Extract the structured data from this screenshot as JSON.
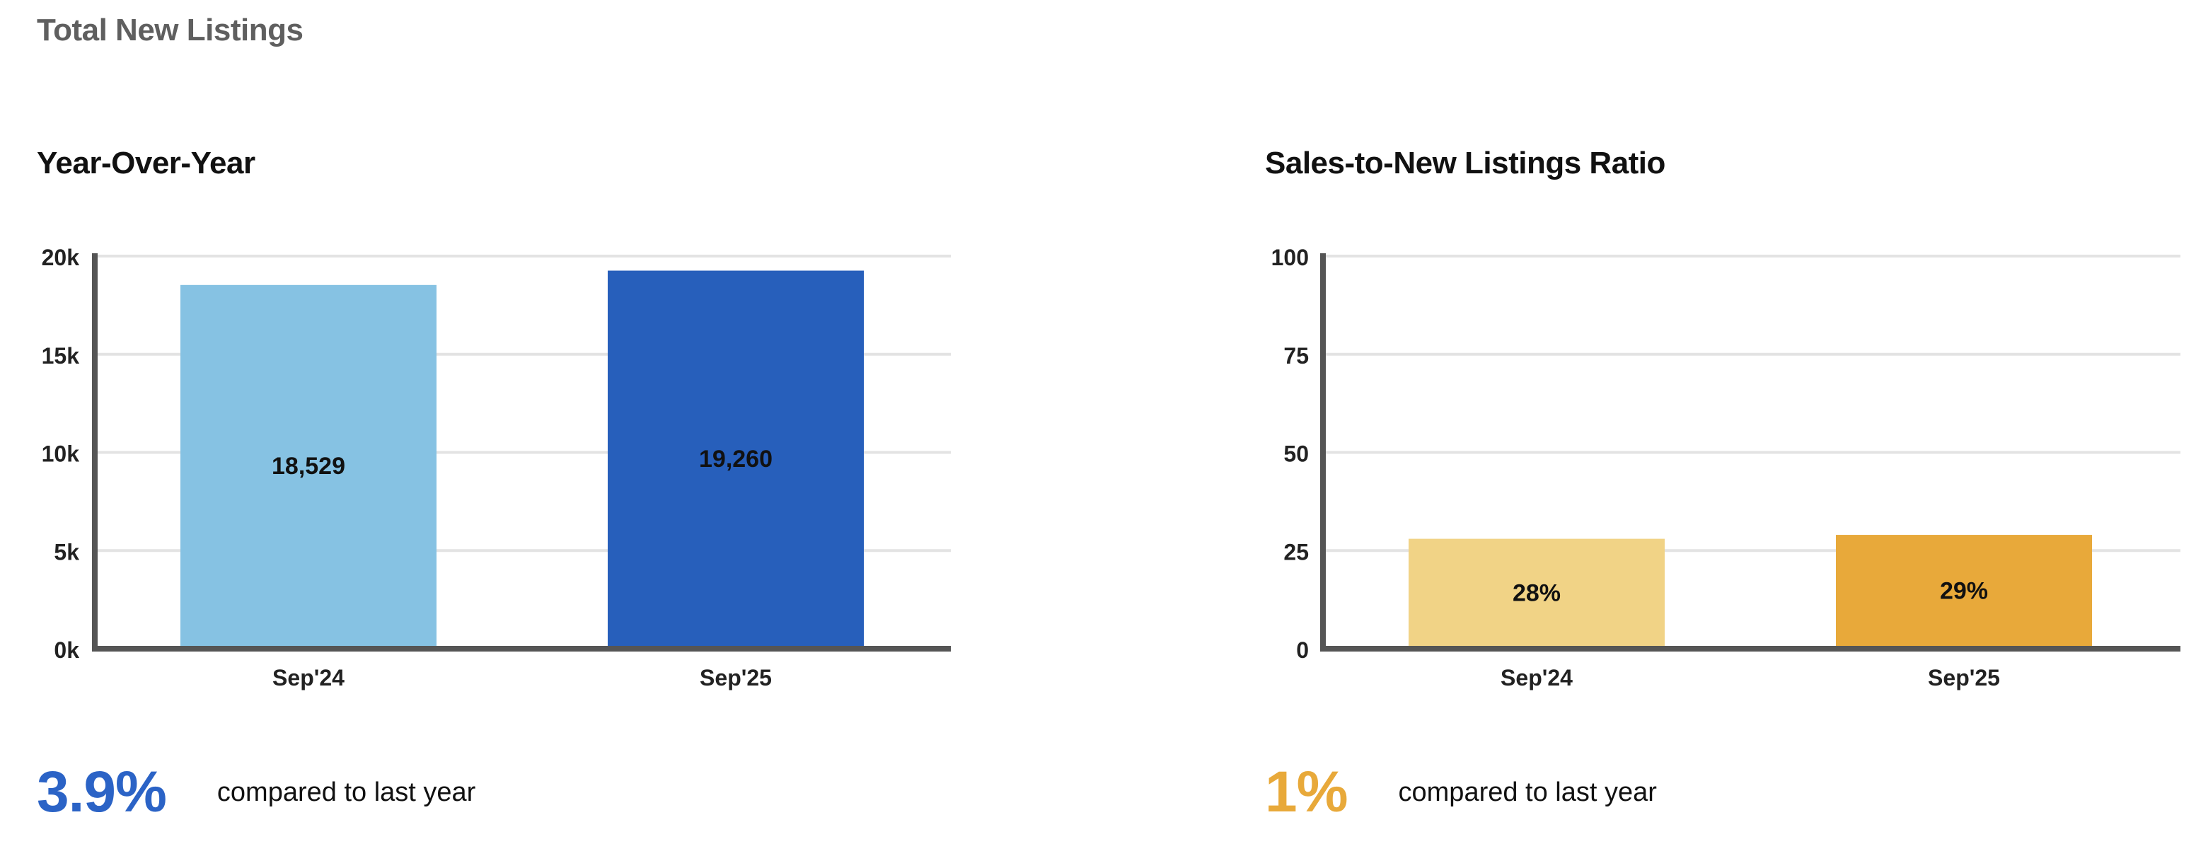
{
  "page_title": "Total New Listings",
  "colors": {
    "axis": "#555555",
    "grid": "#e3e3e3",
    "yoy_prev": "#86c2e3",
    "yoy_curr": "#275fbb",
    "ratio_prev": "#f1d386",
    "ratio_curr": "#e8a93a",
    "yoy_summary": "#2b63c6",
    "ratio_summary": "#e8a93a"
  },
  "panels": {
    "yoy": {
      "title": "Year-Over-Year",
      "summary_value": "3.9%",
      "summary_text": "compared to last year"
    },
    "ratio": {
      "title": "Sales-to-New Listings Ratio",
      "summary_value": "1%",
      "summary_text": "compared to last year"
    }
  },
  "chart_data": [
    {
      "type": "bar",
      "title": "Year-Over-Year",
      "categories": [
        "Sep'24",
        "Sep'25"
      ],
      "values": [
        18529,
        19260
      ],
      "data_labels": [
        "18,529",
        "19,260"
      ],
      "ylim": [
        0,
        20000
      ],
      "yticks": [
        0,
        5000,
        10000,
        15000,
        20000
      ],
      "ytick_labels": [
        "0k",
        "5k",
        "10k",
        "15k",
        "20k"
      ],
      "bar_colors": [
        "#86c2e3",
        "#275fbb"
      ],
      "grid": true,
      "legend": "none"
    },
    {
      "type": "bar",
      "title": "Sales-to-New Listings Ratio",
      "categories": [
        "Sep'24",
        "Sep'25"
      ],
      "values": [
        28,
        29
      ],
      "data_labels": [
        "28%",
        "29%"
      ],
      "ylim": [
        0,
        100
      ],
      "yticks": [
        0,
        25,
        50,
        75,
        100
      ],
      "ytick_labels": [
        "0",
        "25",
        "50",
        "75",
        "100"
      ],
      "bar_colors": [
        "#f1d386",
        "#e8a93a"
      ],
      "grid": true,
      "legend": "none"
    }
  ]
}
